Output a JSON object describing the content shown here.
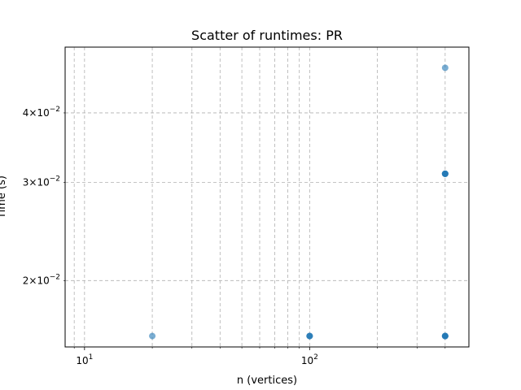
{
  "chart_data": {
    "type": "scatter",
    "title": "Scatter of runtimes: PR",
    "xlabel": "n (vertices)",
    "ylabel": "Time (s)",
    "x_scale": "log",
    "y_scale": "log",
    "xlim": [
      8.2,
      510
    ],
    "ylim": [
      0.0152,
      0.0525
    ],
    "grid": true,
    "grid_style": "dashed",
    "legend": "none",
    "x_major_ticks": [
      {
        "value": 10,
        "base": "10",
        "exp": "1"
      },
      {
        "value": 100,
        "base": "10",
        "exp": "2"
      }
    ],
    "x_minor_grid": [
      9,
      20,
      30,
      40,
      50,
      60,
      70,
      80,
      90,
      200,
      300,
      400
    ],
    "y_ticks": [
      {
        "value": 0.02,
        "mantissa": "2",
        "base": "10",
        "exp": "−2"
      },
      {
        "value": 0.03,
        "mantissa": "3",
        "base": "10",
        "exp": "−2"
      },
      {
        "value": 0.04,
        "mantissa": "4",
        "base": "10",
        "exp": "−2"
      }
    ],
    "series": [
      {
        "color": "#1f77b4",
        "points": [
          {
            "x": 20,
            "y": 0.0159,
            "count": 1
          },
          {
            "x": 100,
            "y": 0.0159,
            "count": 3
          },
          {
            "x": 400,
            "y": 0.0159,
            "count": 4
          },
          {
            "x": 400,
            "y": 0.0311,
            "count": 4
          },
          {
            "x": 400,
            "y": 0.0482,
            "count": 1
          }
        ]
      }
    ]
  }
}
